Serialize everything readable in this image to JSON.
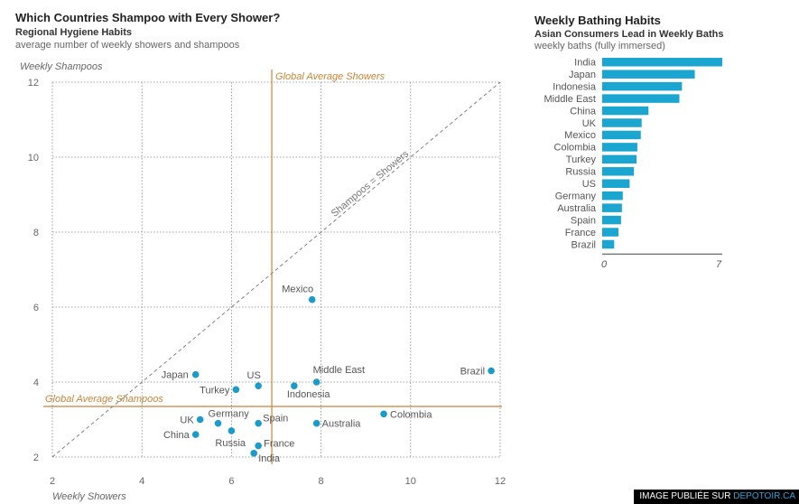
{
  "left": {
    "title": "Which Countries Shampoo with Every Shower?",
    "subtitle": "Regional Hygiene Habits",
    "description": "average number of weekly showers and shampoos"
  },
  "right": {
    "title": "Weekly Bathing Habits",
    "subtitle": "Asian Consumers Lead in Weekly Baths",
    "description": "weekly baths (fully immersed)"
  },
  "credit": {
    "prefix": "IMAGE PUBLIÉE SUR ",
    "brand": "DEPOTOIR.CA"
  },
  "colors": {
    "dot": "#1a9bc9",
    "bar": "#1aa6d1",
    "avg": "#c8843a",
    "grid": "#888888"
  },
  "chart_data": [
    {
      "type": "scatter",
      "xlabel": "Weekly Showers",
      "ylabel": "Weekly Shampoos",
      "xlim": [
        2,
        12
      ],
      "ylim": [
        2,
        12
      ],
      "xticks": [
        2,
        4,
        6,
        8,
        10,
        12
      ],
      "yticks": [
        2,
        4,
        6,
        8,
        10,
        12
      ],
      "grid": true,
      "diagonal_label": "Shampoos = Showers",
      "avg_showers": {
        "value": 6.9,
        "label": "Global Average Showers"
      },
      "avg_shampoos": {
        "value": 3.35,
        "label": "Global Average Shampoos"
      },
      "points": [
        {
          "name": "Mexico",
          "x": 7.8,
          "y": 6.2
        },
        {
          "name": "Brazil",
          "x": 11.8,
          "y": 4.3
        },
        {
          "name": "Middle East",
          "x": 7.9,
          "y": 4.0
        },
        {
          "name": "Japan",
          "x": 5.2,
          "y": 4.2
        },
        {
          "name": "US",
          "x": 6.6,
          "y": 3.9
        },
        {
          "name": "Turkey",
          "x": 6.1,
          "y": 3.8
        },
        {
          "name": "Indonesia",
          "x": 7.4,
          "y": 3.9
        },
        {
          "name": "Colombia",
          "x": 9.4,
          "y": 3.15
        },
        {
          "name": "UK",
          "x": 5.3,
          "y": 3.0
        },
        {
          "name": "Germany",
          "x": 5.7,
          "y": 2.9
        },
        {
          "name": "Spain",
          "x": 6.6,
          "y": 2.9
        },
        {
          "name": "Australia",
          "x": 7.9,
          "y": 2.9
        },
        {
          "name": "China",
          "x": 5.2,
          "y": 2.6
        },
        {
          "name": "Russia",
          "x": 6.0,
          "y": 2.7
        },
        {
          "name": "France",
          "x": 6.6,
          "y": 2.3
        },
        {
          "name": "India",
          "x": 6.5,
          "y": 2.1
        }
      ]
    },
    {
      "type": "bar",
      "orientation": "horizontal",
      "xlim": [
        0,
        7
      ],
      "xticks": [
        0,
        7
      ],
      "categories": [
        "India",
        "Japan",
        "Indonesia",
        "Middle East",
        "China",
        "UK",
        "Mexico",
        "Colombia",
        "Turkey",
        "Russia",
        "US",
        "Germany",
        "Australia",
        "Spain",
        "France",
        "Brazil"
      ],
      "values": [
        7.0,
        5.4,
        4.65,
        4.5,
        2.7,
        2.3,
        2.25,
        2.05,
        2.0,
        1.85,
        1.6,
        1.2,
        1.15,
        1.1,
        0.95,
        0.7
      ]
    }
  ]
}
